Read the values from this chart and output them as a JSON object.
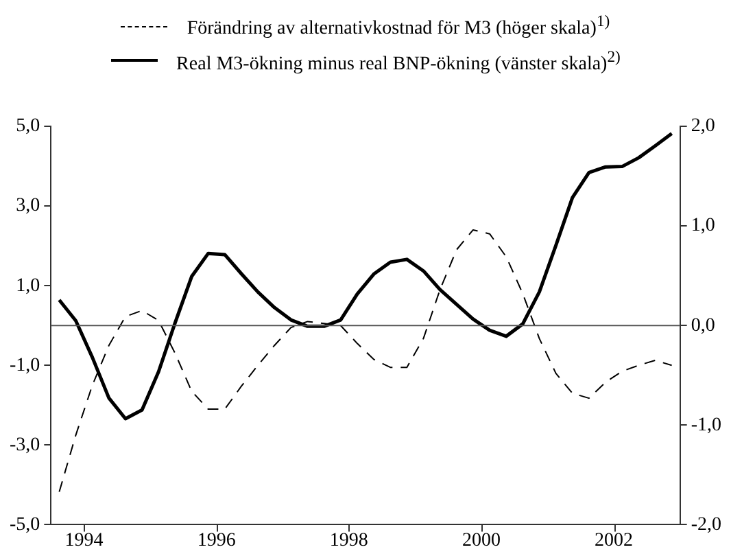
{
  "chart_data": {
    "type": "line",
    "x": [
      1994.125,
      1994.375,
      1994.625,
      1994.875,
      1995.125,
      1995.375,
      1995.625,
      1995.875,
      1996.125,
      1996.375,
      1996.625,
      1996.875,
      1997.125,
      1997.375,
      1997.625,
      1997.875,
      1998.125,
      1998.375,
      1998.625,
      1998.875,
      1999.125,
      1999.375,
      1999.625,
      1999.875,
      2000.125,
      2000.375,
      2000.625,
      2000.875,
      2001.125,
      2001.375,
      2001.625,
      2001.875,
      2002.125,
      2002.375,
      2002.625,
      2002.875,
      2003.125,
      2003.375
    ],
    "series": [
      {
        "name": "Förändring av alternativkostnad för M3 (höger skala)$^{1)}$",
        "color": "#000000",
        "line_style": "dashed",
        "axis": "y2",
        "values": [
          -1.67,
          -1.1,
          -0.6,
          -0.2,
          0.09,
          0.15,
          0.05,
          -0.28,
          -0.66,
          -0.84,
          -0.84,
          -0.61,
          -0.4,
          -0.2,
          -0.02,
          0.04,
          0.02,
          0,
          -0.18,
          -0.34,
          -0.42,
          -0.42,
          -0.13,
          0.36,
          0.76,
          0.96,
          0.92,
          0.69,
          0.32,
          -0.13,
          -0.48,
          -0.68,
          -0.73,
          -0.57,
          -0.46,
          -0.4,
          -0.35,
          -0.4
        ]
      },
      {
        "name": "Real M3-ökning minus real BNP-ökning (vänster skala)$^{2)}$",
        "color": "#000000",
        "line_style": "solid",
        "axis": "y",
        "values": [
          0.64,
          0.12,
          -0.8,
          -1.82,
          -2.34,
          -2.12,
          -1.16,
          0.07,
          1.23,
          1.81,
          1.78,
          1.3,
          0.84,
          0.45,
          0.14,
          -0.02,
          -0.02,
          0.14,
          0.79,
          1.29,
          1.59,
          1.66,
          1.37,
          0.9,
          0.53,
          0.16,
          -0.12,
          -0.27,
          0.04,
          0.84,
          2.01,
          3.21,
          3.84,
          3.98,
          3.99,
          4.21,
          4.51,
          4.82
        ]
      }
    ],
    "xlim": [
      1994,
      2003.5
    ],
    "xticks": [
      {
        "value": 1994.5,
        "label": "1994"
      },
      {
        "value": 1996.5,
        "label": "1996"
      },
      {
        "value": 1998.5,
        "label": "1998"
      },
      {
        "value": 2000.5,
        "label": "2000"
      },
      {
        "value": 2002.5,
        "label": "2002"
      }
    ],
    "ylim": [
      -5,
      5
    ],
    "yticks": [
      {
        "value": -5,
        "label": "-5,0"
      },
      {
        "value": -3,
        "label": "-3,0"
      },
      {
        "value": -1,
        "label": "-1,0"
      },
      {
        "value": 1,
        "label": "1,0"
      },
      {
        "value": 3,
        "label": "3,0"
      },
      {
        "value": 5,
        "label": "5,0"
      }
    ],
    "y2lim": [
      -2,
      2
    ],
    "y2ticks": [
      {
        "value": -2,
        "label": "-2,0"
      },
      {
        "value": -1,
        "label": "-1,0"
      },
      {
        "value": 0,
        "label": "0,0"
      },
      {
        "value": 1,
        "label": "1,0"
      },
      {
        "value": 2,
        "label": "2,0"
      }
    ],
    "ref_lines": [
      {
        "axis": "y",
        "value": 0,
        "color": "#555555"
      }
    ],
    "legend": "top",
    "grid": false,
    "marker": "none"
  }
}
